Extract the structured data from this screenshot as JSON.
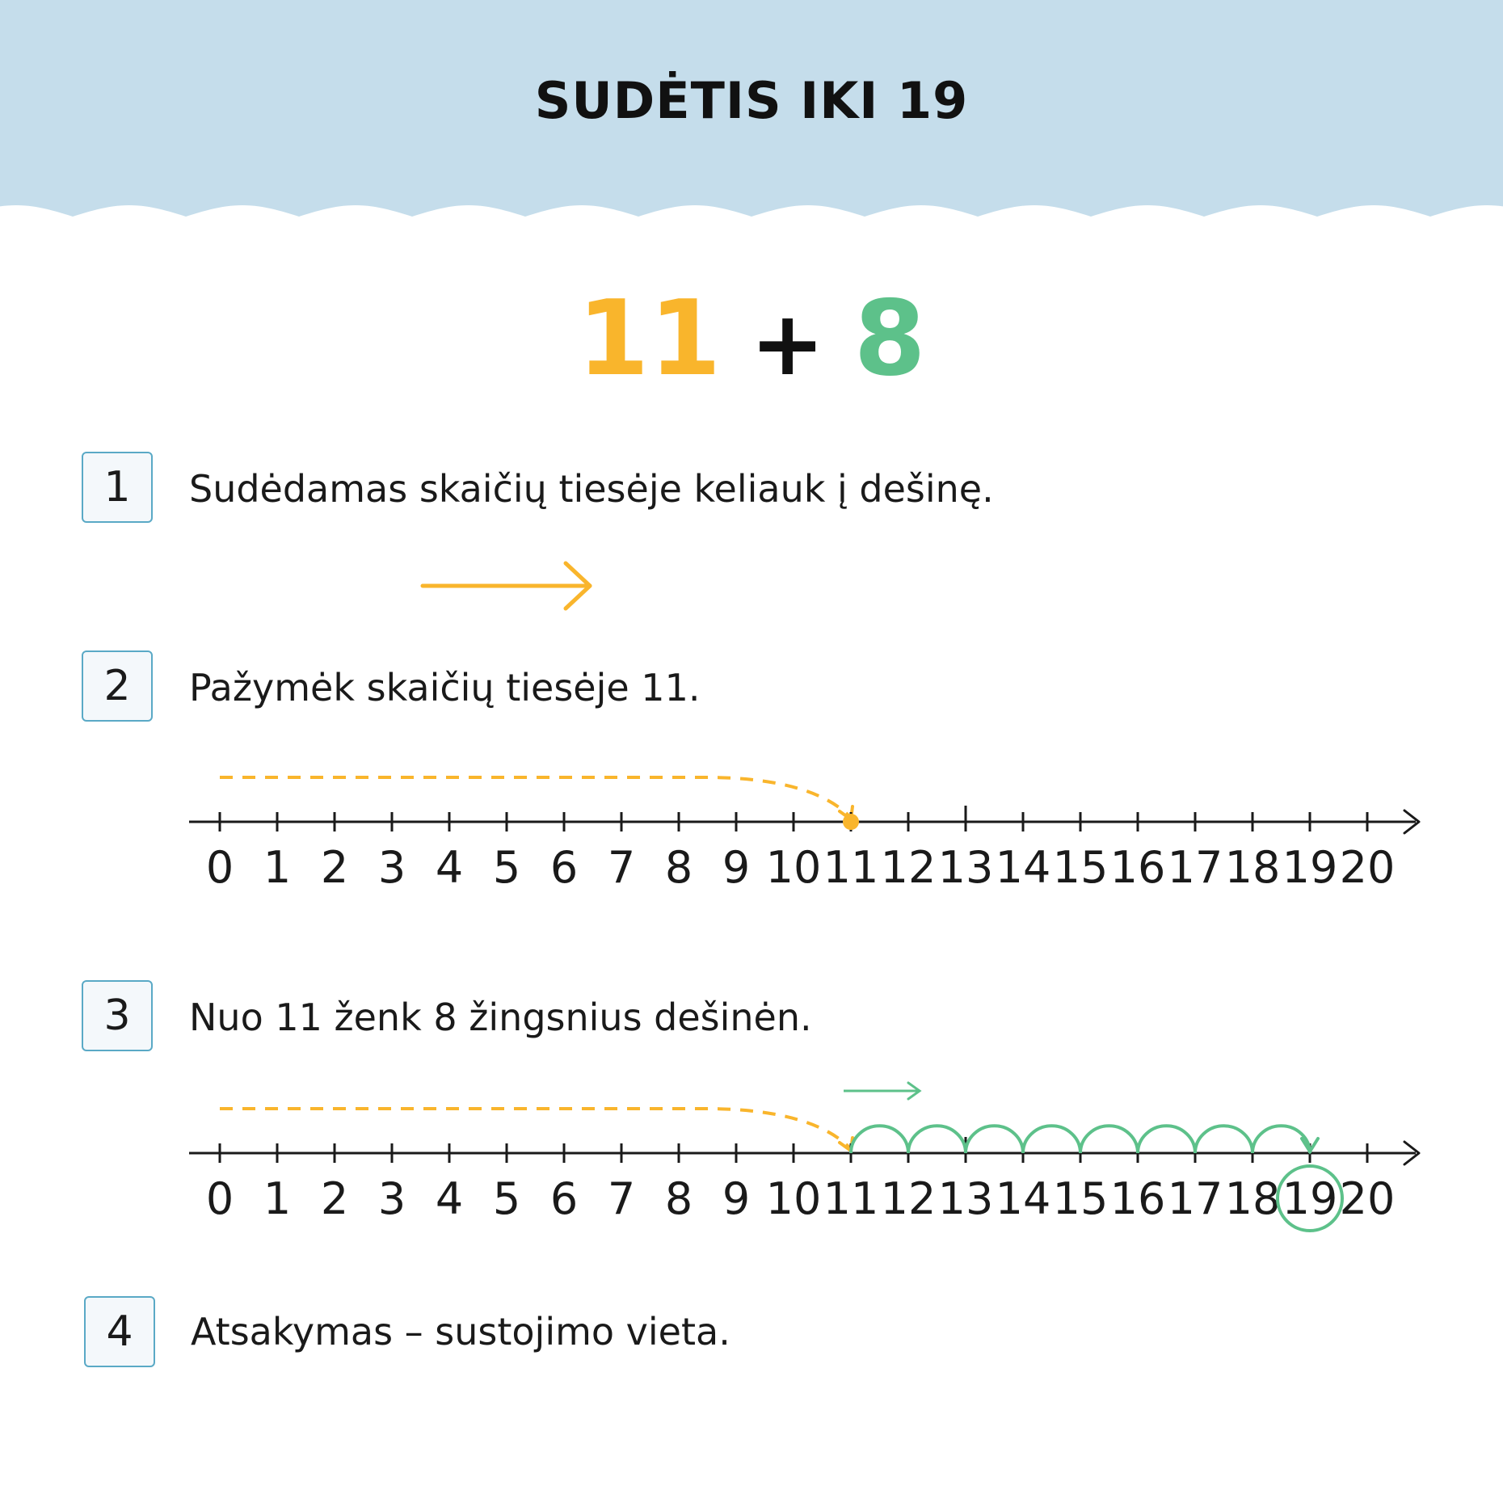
{
  "header": {
    "title": "SUDĖTIS IKI 19",
    "background": "#C5DDEB"
  },
  "equation": {
    "a": "11",
    "op": "+",
    "b": "8",
    "color_a": "#F9B52C",
    "color_b": "#5DC18A"
  },
  "steps": [
    {
      "num": "1",
      "text": "Sudėdamas skaičių tiesėje keliauk į dešinę."
    },
    {
      "num": "2",
      "text": "Pažymėk skaičių tiesėje 11."
    },
    {
      "num": "3",
      "text": "Nuo 11 ženk 8 žingsnius dešinėn."
    },
    {
      "num": "4",
      "text": "Atsakymas – sustojimo vieta."
    }
  ],
  "number_line": {
    "ticks": [
      "0",
      "1",
      "2",
      "3",
      "4",
      "5",
      "6",
      "7",
      "8",
      "9",
      "10",
      "11",
      "12",
      "13",
      "14",
      "15",
      "16",
      "17",
      "18",
      "19",
      "20"
    ],
    "start": 11,
    "steps": 8,
    "result": 19
  },
  "colors": {
    "orange": "#F9B52C",
    "green": "#5DC18A",
    "line": "#1a1a1a",
    "box_border": "#5AA9C6"
  }
}
